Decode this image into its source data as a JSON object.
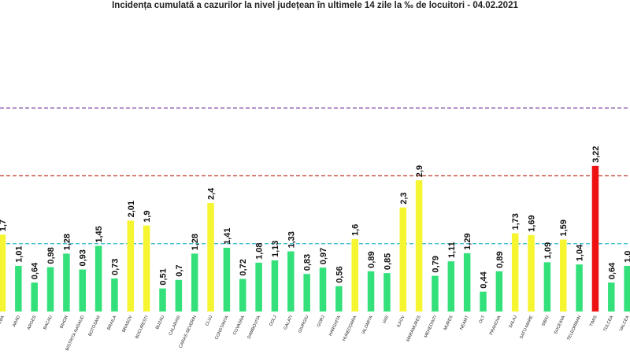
{
  "chart_data": {
    "type": "bar",
    "title": "Incidența cumulată a cazurilor la nivel județean în ultimele 14 zile la ‰ de locuitori - 04.02.2021",
    "xlabel": "",
    "ylabel": "",
    "ylim": [
      0,
      5.0
    ],
    "categories": [
      "ALBA",
      "ARAD",
      "ARGES",
      "BACAU",
      "BIHOR",
      "BISTRITA NASAUD",
      "BOTOSANI",
      "BRAILA",
      "BRASOV",
      "BUCURESTI",
      "BUZAU",
      "CALARASI",
      "CARAS-SEVERIN",
      "CLUJ",
      "CONSTANTA",
      "COVASNA",
      "DAMBOVITA",
      "DOLJ",
      "GALATI",
      "GIURGIU",
      "GORJ",
      "HARGHITA",
      "HUNEDOARA",
      "IALOMITA",
      "IASI",
      "ILFOV",
      "MARAMURES",
      "MEHEDINTI",
      "MURES",
      "NEAMT",
      "OLT",
      "PRAHOVA",
      "SALAJ",
      "SATU-MARE",
      "SIBIU",
      "SUCEAVA",
      "TELEORMAN",
      "TIMIS",
      "TULCEA",
      "VALCEA"
    ],
    "values": [
      1.7,
      1.01,
      0.64,
      0.98,
      1.28,
      0.93,
      1.45,
      0.73,
      2.01,
      1.9,
      0.51,
      0.7,
      1.28,
      2.4,
      1.41,
      0.72,
      1.08,
      1.13,
      1.33,
      0.83,
      0.97,
      0.56,
      1.6,
      0.89,
      0.85,
      2.3,
      2.9,
      0.79,
      1.11,
      1.29,
      0.44,
      0.89,
      1.73,
      1.69,
      1.09,
      1.59,
      1.04,
      3.22,
      0.64,
      1.01
    ],
    "value_labels": [
      "1,7",
      "1,01",
      "0,64",
      "0,98",
      "1,28",
      "0,93",
      "1,45",
      "0,73",
      "2,01",
      "1,9",
      "0,51",
      "0,7",
      "1,28",
      "2,4",
      "1,41",
      "0,72",
      "1,08",
      "1,13",
      "1,33",
      "0,83",
      "0,97",
      "0,56",
      "1,6",
      "0,89",
      "0,85",
      "2,3",
      "2,9",
      "0,79",
      "1,11",
      "1,29",
      "0,44",
      "0,89",
      "1,73",
      "1,69",
      "1,09",
      "1,59",
      "1,04",
      "3,22",
      "0,64",
      "1,0"
    ],
    "thresholds": [
      {
        "value": 1.5,
        "color": "#2ab7c9"
      },
      {
        "value": 3.0,
        "color": "#c0392b"
      },
      {
        "value": 4.5,
        "color": "#7b3fa0"
      }
    ],
    "colors": {
      "green": "#33e07a",
      "yellow": "#f5f531",
      "red": "#ee1111"
    }
  }
}
